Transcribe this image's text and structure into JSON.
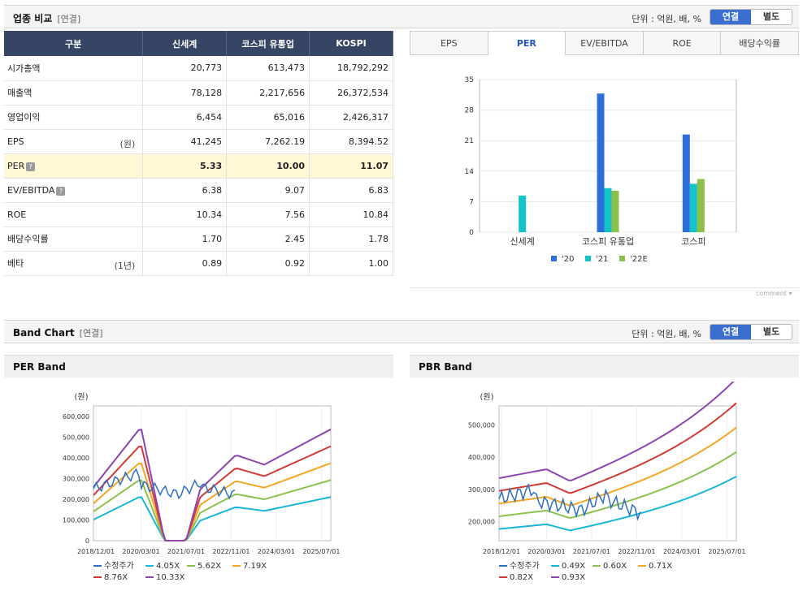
{
  "section1": {
    "title": "업종 비교",
    "sub": "[연결]",
    "unit": "단위 : 억원, 배, %",
    "toggle": [
      "연결",
      "별도"
    ]
  },
  "table": {
    "headers": [
      "구분",
      "신세계",
      "코스피 유통업",
      "KOSPI"
    ],
    "rows": [
      {
        "label": "시가총액",
        "unit": "",
        "vals": [
          "20,773",
          "613,473",
          "18,792,292"
        ]
      },
      {
        "label": "매출액",
        "unit": "",
        "vals": [
          "78,128",
          "2,217,656",
          "26,372,534"
        ]
      },
      {
        "label": "영업이익",
        "unit": "",
        "vals": [
          "6,454",
          "65,016",
          "2,426,317"
        ]
      },
      {
        "label": "EPS",
        "unit": "(원)",
        "vals": [
          "41,245",
          "7,262.19",
          "8,394.52"
        ]
      },
      {
        "label": "PER",
        "unit": "",
        "vals": [
          "5.33",
          "10.00",
          "11.07"
        ]
      },
      {
        "label": "EV/EBITDA",
        "unit": "",
        "vals": [
          "6.38",
          "9.07",
          "6.83"
        ]
      },
      {
        "label": "ROE",
        "unit": "",
        "vals": [
          "10.34",
          "7.56",
          "10.84"
        ]
      },
      {
        "label": "배당수익률",
        "unit": "",
        "vals": [
          "1.70",
          "2.45",
          "1.78"
        ]
      },
      {
        "label": "베타",
        "unit": "(1년)",
        "vals": [
          "0.89",
          "0.92",
          "1.00"
        ]
      }
    ]
  },
  "tabs": [
    "EPS",
    "PER",
    "EV/EBITDA",
    "ROE",
    "배당수익률"
  ],
  "comment": "comment",
  "chart_data": [
    {
      "type": "bar",
      "title": "PER",
      "categories": [
        "신세계",
        "코스피 유통업",
        "코스피"
      ],
      "series": [
        {
          "name": "'20",
          "color": "#2f6fd9",
          "values": [
            null,
            31.8,
            22.4
          ]
        },
        {
          "name": "'21",
          "color": "#14c3c8",
          "values": [
            8.4,
            10.1,
            11.1
          ]
        },
        {
          "name": "'22E",
          "color": "#8dc04b",
          "values": [
            null,
            9.5,
            12.2
          ]
        }
      ],
      "ylim": [
        0,
        35
      ],
      "yticks": [
        0,
        7,
        14,
        21,
        28,
        35
      ]
    },
    {
      "type": "line",
      "title": "PER Band",
      "unit": "(원)",
      "ylim": [
        0,
        650000
      ],
      "yticks": [
        "0",
        "100,000",
        "200,000",
        "300,000",
        "400,000",
        "500,000",
        "600,000"
      ],
      "xticks": [
        "2018/12/01",
        "2020/03/01",
        "2021/07/01",
        "2022/11/01",
        "2024/03/01",
        "2025/07/01"
      ],
      "series": [
        {
          "name": "수정주가",
          "color": "#2f6fbf"
        },
        {
          "name": "4.05X",
          "color": "#18b6d6"
        },
        {
          "name": "5.62X",
          "color": "#8cc14c"
        },
        {
          "name": "7.19X",
          "color": "#f5a623"
        },
        {
          "name": "8.76X",
          "color": "#d23b33"
        },
        {
          "name": "10.33X",
          "color": "#8e44ad"
        }
      ]
    },
    {
      "type": "line",
      "title": "PBR Band",
      "unit": "(원)",
      "ylim": [
        140000,
        560000
      ],
      "yticks": [
        "200,000",
        "300,000",
        "400,000",
        "500,000"
      ],
      "xticks": [
        "2018/12/01",
        "2020/03/01",
        "2021/07/01",
        "2022/11/01",
        "2024/03/01",
        "2025/07/01"
      ],
      "series": [
        {
          "name": "수정주가",
          "color": "#2f6fbf"
        },
        {
          "name": "0.49X",
          "color": "#18b6d6"
        },
        {
          "name": "0.60X",
          "color": "#8cc14c"
        },
        {
          "name": "0.71X",
          "color": "#f5a623"
        },
        {
          "name": "0.82X",
          "color": "#d23b33"
        },
        {
          "name": "0.93X",
          "color": "#8e44ad"
        }
      ]
    }
  ],
  "section2": {
    "title": "Band Chart",
    "sub": "[연결]",
    "unit": "단위 : 억원, 배, %",
    "toggle": [
      "연결",
      "별도"
    ]
  }
}
